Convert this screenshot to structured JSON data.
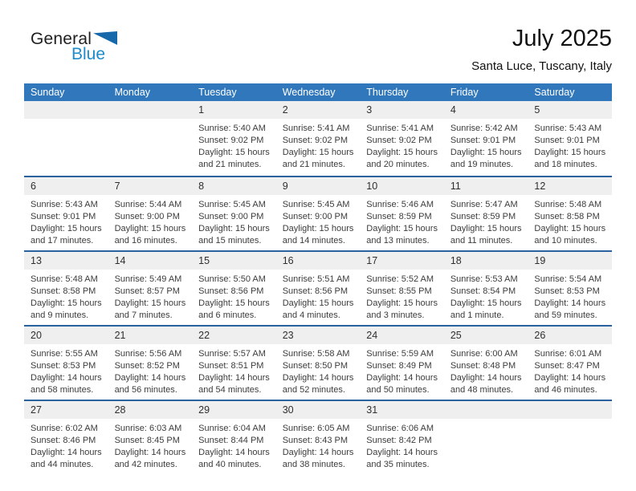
{
  "logo": {
    "text_top": "General",
    "text_bottom": "Blue"
  },
  "header": {
    "title": "July 2025",
    "subtitle": "Santa Luce, Tuscany, Italy"
  },
  "weekdays": [
    "Sunday",
    "Monday",
    "Tuesday",
    "Wednesday",
    "Thursday",
    "Friday",
    "Saturday"
  ],
  "labels": {
    "sunrise": "Sunrise:",
    "sunset": "Sunset:",
    "daylight": "Daylight:"
  },
  "colors": {
    "header_bg": "#3177bb",
    "divider": "#2a62a0",
    "band_bg": "#efefef",
    "logo_blue": "#1e8bcc",
    "triangle_blue": "#1668ab"
  },
  "calendar": {
    "first_day_column": 2,
    "days": [
      {
        "date": 1,
        "sunrise": "5:40 AM",
        "sunset": "9:02 PM",
        "daylight": "15 hours and 21 minutes."
      },
      {
        "date": 2,
        "sunrise": "5:41 AM",
        "sunset": "9:02 PM",
        "daylight": "15 hours and 21 minutes."
      },
      {
        "date": 3,
        "sunrise": "5:41 AM",
        "sunset": "9:02 PM",
        "daylight": "15 hours and 20 minutes."
      },
      {
        "date": 4,
        "sunrise": "5:42 AM",
        "sunset": "9:01 PM",
        "daylight": "15 hours and 19 minutes."
      },
      {
        "date": 5,
        "sunrise": "5:43 AM",
        "sunset": "9:01 PM",
        "daylight": "15 hours and 18 minutes."
      },
      {
        "date": 6,
        "sunrise": "5:43 AM",
        "sunset": "9:01 PM",
        "daylight": "15 hours and 17 minutes."
      },
      {
        "date": 7,
        "sunrise": "5:44 AM",
        "sunset": "9:00 PM",
        "daylight": "15 hours and 16 minutes."
      },
      {
        "date": 8,
        "sunrise": "5:45 AM",
        "sunset": "9:00 PM",
        "daylight": "15 hours and 15 minutes."
      },
      {
        "date": 9,
        "sunrise": "5:45 AM",
        "sunset": "9:00 PM",
        "daylight": "15 hours and 14 minutes."
      },
      {
        "date": 10,
        "sunrise": "5:46 AM",
        "sunset": "8:59 PM",
        "daylight": "15 hours and 13 minutes."
      },
      {
        "date": 11,
        "sunrise": "5:47 AM",
        "sunset": "8:59 PM",
        "daylight": "15 hours and 11 minutes."
      },
      {
        "date": 12,
        "sunrise": "5:48 AM",
        "sunset": "8:58 PM",
        "daylight": "15 hours and 10 minutes."
      },
      {
        "date": 13,
        "sunrise": "5:48 AM",
        "sunset": "8:58 PM",
        "daylight": "15 hours and 9 minutes."
      },
      {
        "date": 14,
        "sunrise": "5:49 AM",
        "sunset": "8:57 PM",
        "daylight": "15 hours and 7 minutes."
      },
      {
        "date": 15,
        "sunrise": "5:50 AM",
        "sunset": "8:56 PM",
        "daylight": "15 hours and 6 minutes."
      },
      {
        "date": 16,
        "sunrise": "5:51 AM",
        "sunset": "8:56 PM",
        "daylight": "15 hours and 4 minutes."
      },
      {
        "date": 17,
        "sunrise": "5:52 AM",
        "sunset": "8:55 PM",
        "daylight": "15 hours and 3 minutes."
      },
      {
        "date": 18,
        "sunrise": "5:53 AM",
        "sunset": "8:54 PM",
        "daylight": "15 hours and 1 minute."
      },
      {
        "date": 19,
        "sunrise": "5:54 AM",
        "sunset": "8:53 PM",
        "daylight": "14 hours and 59 minutes."
      },
      {
        "date": 20,
        "sunrise": "5:55 AM",
        "sunset": "8:53 PM",
        "daylight": "14 hours and 58 minutes."
      },
      {
        "date": 21,
        "sunrise": "5:56 AM",
        "sunset": "8:52 PM",
        "daylight": "14 hours and 56 minutes."
      },
      {
        "date": 22,
        "sunrise": "5:57 AM",
        "sunset": "8:51 PM",
        "daylight": "14 hours and 54 minutes."
      },
      {
        "date": 23,
        "sunrise": "5:58 AM",
        "sunset": "8:50 PM",
        "daylight": "14 hours and 52 minutes."
      },
      {
        "date": 24,
        "sunrise": "5:59 AM",
        "sunset": "8:49 PM",
        "daylight": "14 hours and 50 minutes."
      },
      {
        "date": 25,
        "sunrise": "6:00 AM",
        "sunset": "8:48 PM",
        "daylight": "14 hours and 48 minutes."
      },
      {
        "date": 26,
        "sunrise": "6:01 AM",
        "sunset": "8:47 PM",
        "daylight": "14 hours and 46 minutes."
      },
      {
        "date": 27,
        "sunrise": "6:02 AM",
        "sunset": "8:46 PM",
        "daylight": "14 hours and 44 minutes."
      },
      {
        "date": 28,
        "sunrise": "6:03 AM",
        "sunset": "8:45 PM",
        "daylight": "14 hours and 42 minutes."
      },
      {
        "date": 29,
        "sunrise": "6:04 AM",
        "sunset": "8:44 PM",
        "daylight": "14 hours and 40 minutes."
      },
      {
        "date": 30,
        "sunrise": "6:05 AM",
        "sunset": "8:43 PM",
        "daylight": "14 hours and 38 minutes."
      },
      {
        "date": 31,
        "sunrise": "6:06 AM",
        "sunset": "8:42 PM",
        "daylight": "14 hours and 35 minutes."
      }
    ]
  }
}
